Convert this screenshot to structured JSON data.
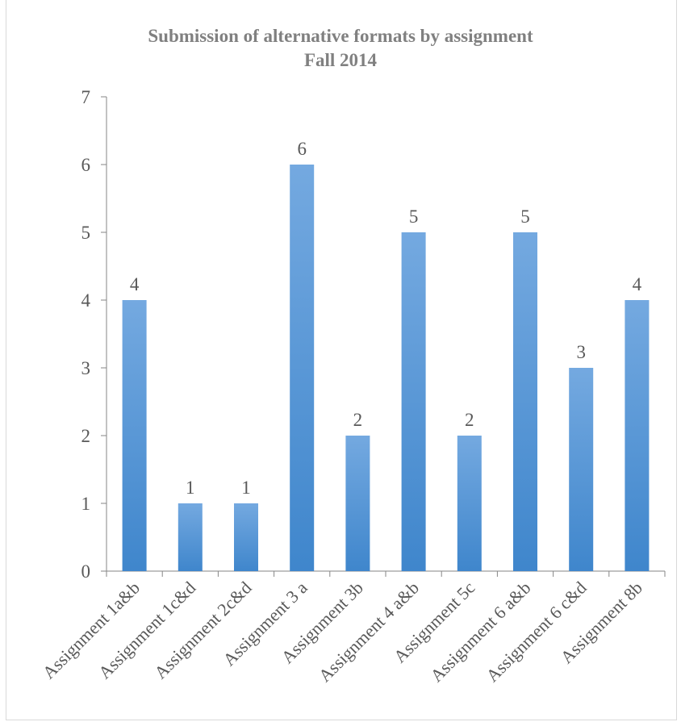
{
  "chart_data": {
    "type": "bar",
    "title": "Submission of alternative formats by assignment",
    "subtitle": "Fall 2014",
    "xlabel": "",
    "ylabel": "",
    "categories": [
      "Assignment 1a&b",
      "Assignment 1c&d",
      "Assignment 2c&d",
      "Assignment 3 a",
      "Assignment 3b",
      "Assignment 4 a&b",
      "Assignment 5c",
      "Assignment 6 a&b",
      "Assignment 6 c&d",
      "Assignment 8b"
    ],
    "values": [
      4,
      1,
      1,
      6,
      2,
      5,
      2,
      5,
      3,
      4
    ],
    "ylim": [
      0,
      7
    ],
    "yticks": [
      0,
      1,
      2,
      3,
      4,
      5,
      6,
      7
    ],
    "grid": false,
    "legend": "none",
    "data_labels": true,
    "colors": {
      "bar_top": "#74a9e0",
      "bar_bottom": "#3f86cc",
      "axis": "#868686",
      "text": "#595959",
      "title": "#808080"
    }
  }
}
